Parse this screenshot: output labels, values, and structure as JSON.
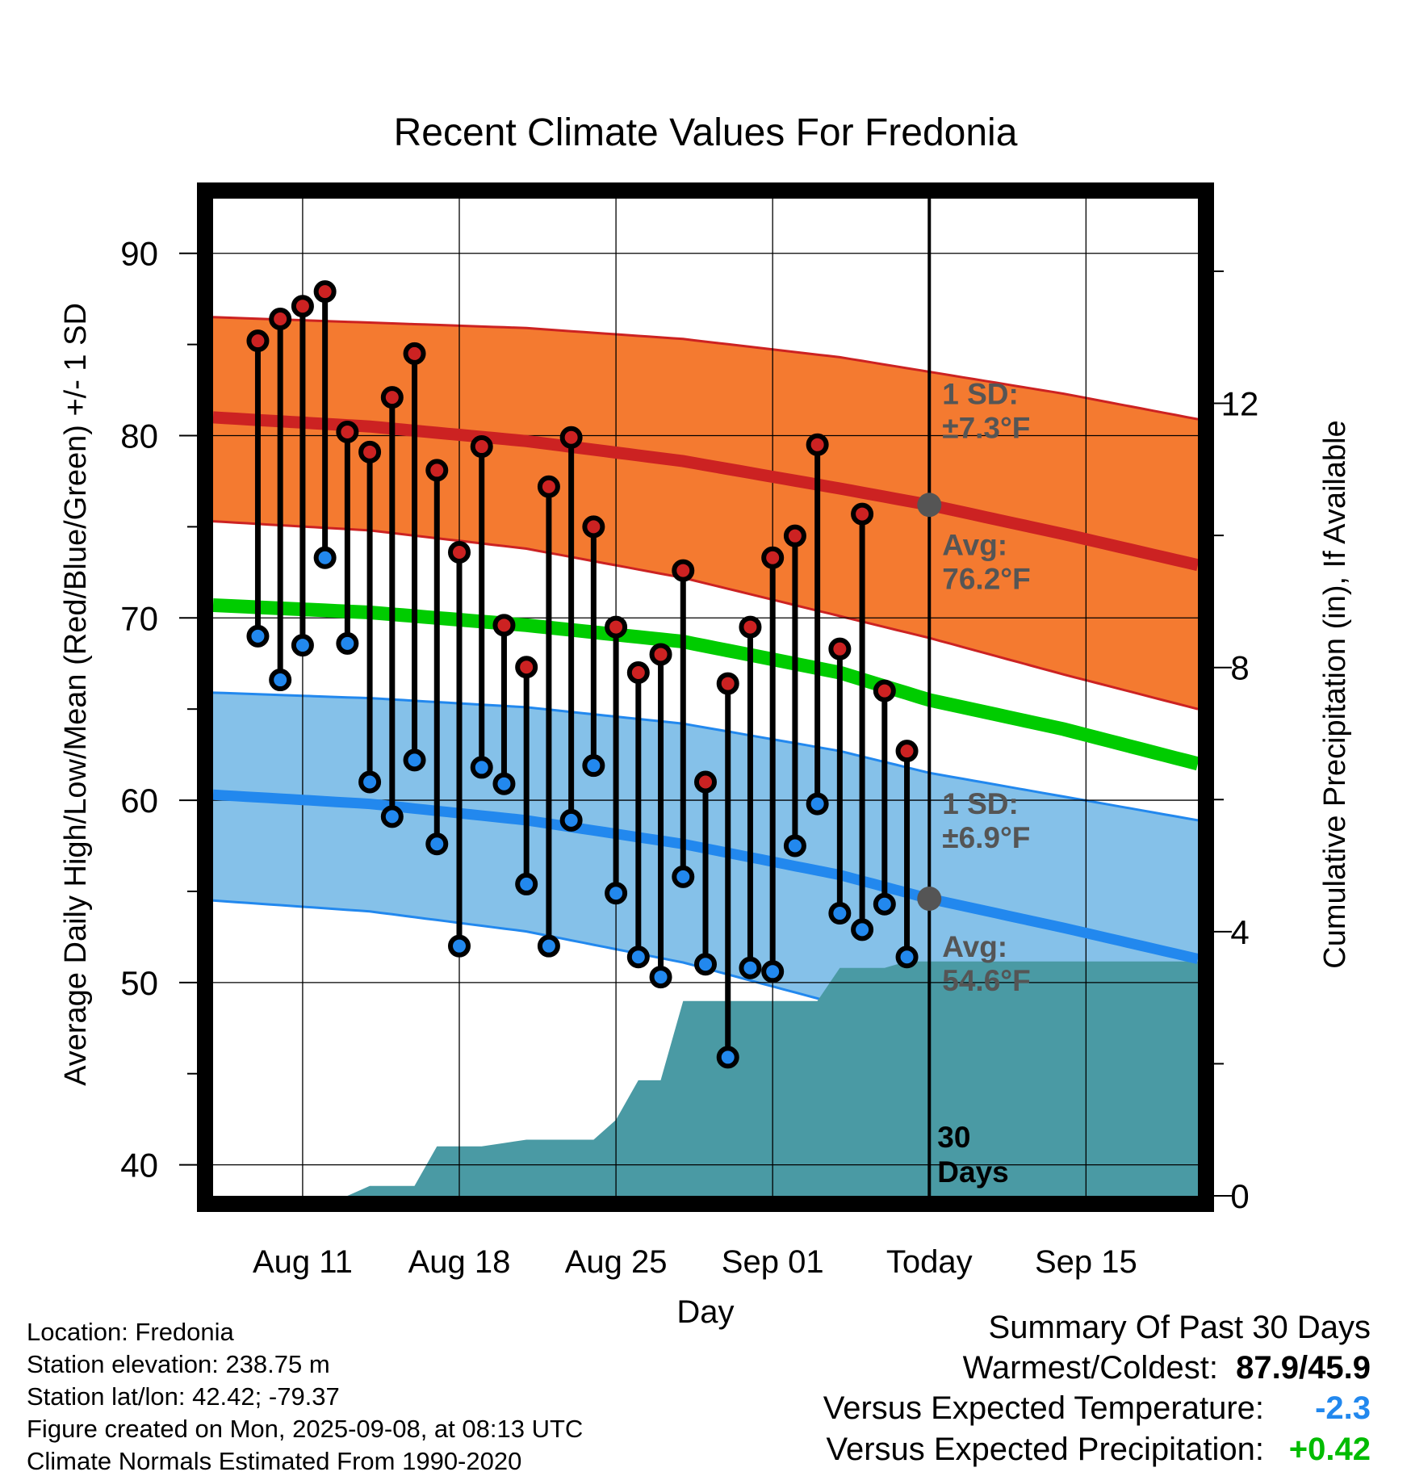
{
  "chart_data": {
    "type": "line",
    "title": "Recent Climate Values For Fredonia",
    "xlabel": "Day",
    "ylabel": "Average Daily High/Low/Mean (Red/Blue/Green) +/- 1 SD",
    "y2label": "Cumulative Precipitation (in), If Available",
    "xlim": [
      "2025-08-07",
      "2025-09-20"
    ],
    "ylim": [
      38.3,
      93
    ],
    "y2lim": [
      0,
      15.1
    ],
    "x_ticks": [
      "Aug 11",
      "Aug 18",
      "Aug 25",
      "Sep 01",
      "Today",
      "Sep 15"
    ],
    "x_tick_dates": [
      "2025-08-11",
      "2025-08-18",
      "2025-08-25",
      "2025-09-01",
      "2025-09-08",
      "2025-09-15"
    ],
    "y_ticks": [
      40,
      50,
      60,
      70,
      80,
      90
    ],
    "y2_ticks": [
      0,
      4,
      8,
      12
    ],
    "today": "2025-09-08",
    "grid": true,
    "colors": {
      "high": "#cc2222",
      "low": "#2288ee",
      "mean": "#00cc00",
      "high_band": "#f47a30",
      "low_band": "#85c1e9",
      "precip": "#4a9aa4",
      "marker_gray": "#555555"
    },
    "normals": {
      "dates": [
        "2025-08-07",
        "2025-08-14",
        "2025-08-21",
        "2025-08-28",
        "2025-09-04",
        "2025-09-08",
        "2025-09-14",
        "2025-09-20"
      ],
      "high_mean": [
        81.0,
        80.5,
        79.7,
        78.6,
        77.1,
        76.2,
        74.6,
        72.9
      ],
      "high_upper": [
        86.5,
        86.2,
        85.9,
        85.3,
        84.3,
        83.5,
        82.3,
        80.9
      ],
      "high_lower": [
        75.3,
        74.8,
        73.8,
        72.2,
        70.1,
        68.9,
        66.9,
        65.0
      ],
      "mean": [
        70.7,
        70.3,
        69.6,
        68.7,
        67.0,
        65.5,
        63.9,
        62.0
      ],
      "low_mean": [
        60.3,
        59.8,
        58.9,
        57.6,
        55.9,
        54.6,
        53.0,
        51.3
      ],
      "low_upper": [
        65.9,
        65.6,
        65.1,
        64.2,
        62.7,
        61.5,
        60.2,
        58.9
      ],
      "low_lower": [
        54.5,
        53.9,
        52.8,
        51.1,
        48.8,
        47.6,
        45.9,
        44.0
      ]
    },
    "annotations": {
      "high_sd_label": "1 SD:",
      "high_sd_value": "±7.3°F",
      "high_avg_label": "Avg:",
      "high_avg_value": "76.2°F",
      "low_sd_label": "1 SD:",
      "low_sd_value": "±6.9°F",
      "low_avg_label": "Avg:",
      "low_avg_value": "54.6°F",
      "window_count": "30",
      "window_unit": "Days"
    },
    "series": [
      {
        "name": "High",
        "x": [
          "2025-08-09",
          "2025-08-10",
          "2025-08-11",
          "2025-08-12",
          "2025-08-13",
          "2025-08-14",
          "2025-08-15",
          "2025-08-16",
          "2025-08-17",
          "2025-08-18",
          "2025-08-19",
          "2025-08-20",
          "2025-08-21",
          "2025-08-22",
          "2025-08-23",
          "2025-08-24",
          "2025-08-25",
          "2025-08-26",
          "2025-08-27",
          "2025-08-28",
          "2025-08-29",
          "2025-08-30",
          "2025-08-31",
          "2025-09-01",
          "2025-09-02",
          "2025-09-03",
          "2025-09-04",
          "2025-09-05",
          "2025-09-06",
          "2025-09-07"
        ],
        "values": [
          85.2,
          86.4,
          87.1,
          87.9,
          80.2,
          79.1,
          82.1,
          84.5,
          78.1,
          73.6,
          79.4,
          69.6,
          67.3,
          77.2,
          79.9,
          75.0,
          69.5,
          67.0,
          68.0,
          72.6,
          61.0,
          66.4,
          69.5,
          73.3,
          74.5,
          79.5,
          68.3,
          75.7,
          66.0,
          62.7
        ]
      },
      {
        "name": "Low",
        "x": [
          "2025-08-09",
          "2025-08-10",
          "2025-08-11",
          "2025-08-12",
          "2025-08-13",
          "2025-08-14",
          "2025-08-15",
          "2025-08-16",
          "2025-08-17",
          "2025-08-18",
          "2025-08-19",
          "2025-08-20",
          "2025-08-21",
          "2025-08-22",
          "2025-08-23",
          "2025-08-24",
          "2025-08-25",
          "2025-08-26",
          "2025-08-27",
          "2025-08-28",
          "2025-08-29",
          "2025-08-30",
          "2025-08-31",
          "2025-09-01",
          "2025-09-02",
          "2025-09-03",
          "2025-09-04",
          "2025-09-05",
          "2025-09-06",
          "2025-09-07"
        ],
        "values": [
          69.0,
          66.6,
          68.5,
          73.3,
          68.6,
          61.0,
          59.1,
          62.2,
          57.6,
          52.0,
          61.8,
          60.9,
          55.4,
          52.0,
          58.9,
          61.9,
          54.9,
          51.4,
          50.3,
          55.8,
          51.0,
          45.9,
          50.8,
          50.6,
          57.5,
          59.8,
          53.8,
          52.9,
          54.3,
          51.4
        ]
      },
      {
        "name": "Cumulative Precipitation",
        "x": [
          "2025-08-07",
          "2025-08-13",
          "2025-08-14",
          "2025-08-16",
          "2025-08-17",
          "2025-08-19",
          "2025-08-20",
          "2025-08-21",
          "2025-08-24",
          "2025-08-25",
          "2025-08-26",
          "2025-08-27",
          "2025-08-28",
          "2025-08-29",
          "2025-09-03",
          "2025-09-04",
          "2025-09-06",
          "2025-09-07",
          "2025-09-20"
        ],
        "values": [
          0,
          0,
          0.15,
          0.15,
          0.75,
          0.75,
          0.8,
          0.85,
          0.85,
          1.15,
          1.75,
          1.75,
          2.95,
          2.95,
          2.95,
          3.45,
          3.45,
          3.55,
          3.55
        ]
      }
    ]
  },
  "footer_info": {
    "location": "Location: Fredonia",
    "elevation": "Station elevation: 238.75 m",
    "latlon": "Station lat/lon: 42.42; -79.37",
    "created": "Figure created on Mon, 2025-09-08, at 08:13 UTC",
    "normals": "Climate Normals Estimated From 1990-2020"
  },
  "summary": {
    "title": "Summary Of Past 30 Days",
    "warm_cold_label": "Warmest/Coldest:",
    "warm_cold_value": "87.9/45.9",
    "temp_label": "Versus Expected Temperature:",
    "temp_value": "-2.3",
    "temp_color": "#2288ee",
    "precip_label": "Versus Expected Precipitation:",
    "precip_value": "+0.42",
    "precip_color": "#00bb00"
  }
}
